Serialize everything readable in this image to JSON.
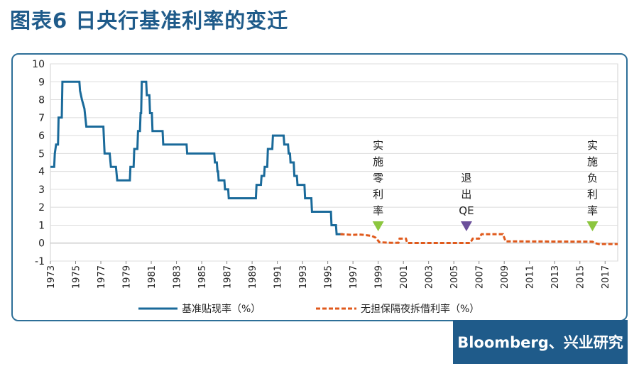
{
  "header": {
    "title": "图表6 日央行基准利率的变迁"
  },
  "source": {
    "label": "Bloomberg、兴业研究"
  },
  "colors": {
    "title": "#1f5b8a",
    "frame": "#2e6f98",
    "series_discount": "#1a6a9a",
    "series_call": "#e05a1c",
    "marker_green": "#8cc63f",
    "marker_purple": "#6b4f9a",
    "source_bg": "#1f5b8a"
  },
  "chart_data": {
    "type": "line",
    "xlim": [
      1973,
      2018
    ],
    "ylim": [
      -1,
      10
    ],
    "y_ticks": [
      10,
      9,
      8,
      7,
      6,
      5,
      4,
      3,
      2,
      1,
      0,
      -1
    ],
    "x_ticks": [
      "1973",
      "1975",
      "1977",
      "1979",
      "1981",
      "1983",
      "1985",
      "1987",
      "1989",
      "1991",
      "1993",
      "1995",
      "1997",
      "1999",
      "2001",
      "2003",
      "2005",
      "2007",
      "2009",
      "2011",
      "2013",
      "2015",
      "2017"
    ],
    "grid": true,
    "legend_position": "bottom",
    "series": [
      {
        "name": "基准贴现率（%）",
        "style": "solid",
        "points": [
          [
            1973.0,
            4.25
          ],
          [
            1973.3,
            4.25
          ],
          [
            1973.35,
            5.0
          ],
          [
            1973.45,
            5.5
          ],
          [
            1973.6,
            5.5
          ],
          [
            1973.65,
            7.0
          ],
          [
            1973.9,
            7.0
          ],
          [
            1973.95,
            9.0
          ],
          [
            1975.3,
            9.0
          ],
          [
            1975.35,
            8.5
          ],
          [
            1975.5,
            8.0
          ],
          [
            1975.7,
            7.5
          ],
          [
            1975.85,
            6.5
          ],
          [
            1977.2,
            6.5
          ],
          [
            1977.3,
            5.0
          ],
          [
            1977.7,
            5.0
          ],
          [
            1977.8,
            4.25
          ],
          [
            1978.2,
            4.25
          ],
          [
            1978.3,
            3.5
          ],
          [
            1979.3,
            3.5
          ],
          [
            1979.35,
            4.25
          ],
          [
            1979.6,
            4.25
          ],
          [
            1979.65,
            5.25
          ],
          [
            1979.9,
            5.25
          ],
          [
            1979.95,
            6.25
          ],
          [
            1980.1,
            6.25
          ],
          [
            1980.15,
            7.25
          ],
          [
            1980.2,
            7.25
          ],
          [
            1980.25,
            9.0
          ],
          [
            1980.6,
            9.0
          ],
          [
            1980.65,
            8.25
          ],
          [
            1980.85,
            8.25
          ],
          [
            1980.9,
            7.25
          ],
          [
            1981.05,
            7.25
          ],
          [
            1981.1,
            6.25
          ],
          [
            1981.9,
            6.25
          ],
          [
            1981.95,
            5.5
          ],
          [
            1983.8,
            5.5
          ],
          [
            1983.85,
            5.0
          ],
          [
            1986.0,
            5.0
          ],
          [
            1986.05,
            4.5
          ],
          [
            1986.2,
            4.5
          ],
          [
            1986.25,
            4.0
          ],
          [
            1986.3,
            4.0
          ],
          [
            1986.35,
            3.5
          ],
          [
            1986.8,
            3.5
          ],
          [
            1986.85,
            3.0
          ],
          [
            1987.1,
            3.0
          ],
          [
            1987.15,
            2.5
          ],
          [
            1989.3,
            2.5
          ],
          [
            1989.35,
            3.25
          ],
          [
            1989.7,
            3.25
          ],
          [
            1989.75,
            3.75
          ],
          [
            1989.95,
            3.75
          ],
          [
            1990.0,
            4.25
          ],
          [
            1990.2,
            4.25
          ],
          [
            1990.25,
            5.25
          ],
          [
            1990.6,
            5.25
          ],
          [
            1990.65,
            6.0
          ],
          [
            1991.5,
            6.0
          ],
          [
            1991.55,
            5.5
          ],
          [
            1991.85,
            5.5
          ],
          [
            1991.9,
            5.0
          ],
          [
            1992.0,
            5.0
          ],
          [
            1992.05,
            4.5
          ],
          [
            1992.3,
            4.5
          ],
          [
            1992.35,
            3.75
          ],
          [
            1992.55,
            3.75
          ],
          [
            1992.6,
            3.25
          ],
          [
            1993.15,
            3.25
          ],
          [
            1993.2,
            2.5
          ],
          [
            1993.7,
            2.5
          ],
          [
            1993.75,
            1.75
          ],
          [
            1995.25,
            1.75
          ],
          [
            1995.3,
            1.0
          ],
          [
            1995.65,
            1.0
          ],
          [
            1995.7,
            0.5
          ],
          [
            1996.2,
            0.5
          ]
        ]
      },
      {
        "name": "无担保隔夜拆借利率（%）",
        "style": "dashed",
        "points": [
          [
            1996.0,
            0.5
          ],
          [
            1996.5,
            0.48
          ],
          [
            1997.0,
            0.46
          ],
          [
            1997.5,
            0.48
          ],
          [
            1998.0,
            0.45
          ],
          [
            1998.5,
            0.4
          ],
          [
            1998.8,
            0.3
          ],
          [
            1999.1,
            0.05
          ],
          [
            2000.0,
            0.02
          ],
          [
            2000.6,
            0.02
          ],
          [
            2000.7,
            0.25
          ],
          [
            2001.2,
            0.25
          ],
          [
            2001.3,
            0.01
          ],
          [
            2006.3,
            0.01
          ],
          [
            2006.5,
            0.25
          ],
          [
            2007.0,
            0.25
          ],
          [
            2007.2,
            0.5
          ],
          [
            2008.9,
            0.5
          ],
          [
            2009.1,
            0.1
          ],
          [
            2016.0,
            0.08
          ],
          [
            2016.2,
            0.0
          ],
          [
            2016.5,
            -0.05
          ],
          [
            2018.0,
            -0.05
          ]
        ]
      }
    ],
    "annotations": [
      {
        "text": "实施零利率",
        "x": 1999.0,
        "marker": "down-triangle",
        "color": "green"
      },
      {
        "text": "退出QE",
        "x": 2006.0,
        "marker": "down-triangle",
        "color": "purple"
      },
      {
        "text": "实施负利率",
        "x": 2016.0,
        "marker": "down-triangle",
        "color": "green"
      }
    ]
  }
}
